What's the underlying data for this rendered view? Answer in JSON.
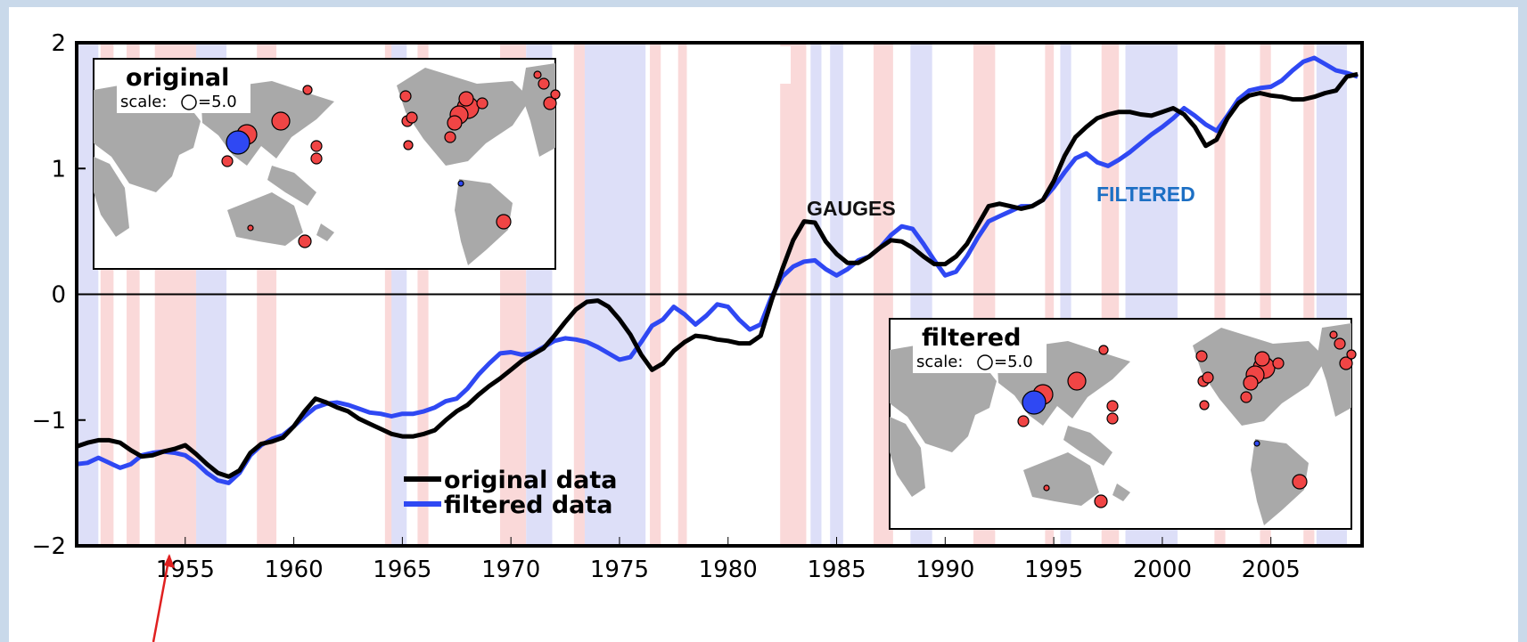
{
  "chart_data": {
    "type": "line",
    "x_ticks": [
      "1955",
      "1960",
      "1965",
      "1970",
      "1975",
      "1980",
      "1985",
      "1990",
      "1995",
      "2000",
      "2005"
    ],
    "y_ticks": [
      "2",
      "1",
      "0",
      "−1",
      "−2"
    ],
    "xlim": [
      1950.0,
      2009.2
    ],
    "ylim": [
      -2,
      2
    ],
    "grid": false,
    "zero_line": true,
    "legend": {
      "placement": "bottom-center",
      "entries": [
        {
          "label": "original data",
          "color": "#000000"
        },
        {
          "label": "filtered data",
          "color": "#2f48f3"
        }
      ]
    },
    "annotations": [
      {
        "text": "GAUGES",
        "color": "#111111"
      },
      {
        "text": "FILTERED",
        "color": "#1c6fc4"
      }
    ],
    "series": [
      {
        "key": "original",
        "color": "#000000",
        "points": [
          [
            1950.0,
            -1.21
          ],
          [
            1950.5,
            -1.18
          ],
          [
            1951.0,
            -1.16
          ],
          [
            1951.5,
            -1.16
          ],
          [
            1952.0,
            -1.18
          ],
          [
            1952.5,
            -1.24
          ],
          [
            1953.0,
            -1.29
          ],
          [
            1953.5,
            -1.28
          ],
          [
            1954.0,
            -1.25
          ],
          [
            1954.5,
            -1.23
          ],
          [
            1955.0,
            -1.2
          ],
          [
            1955.5,
            -1.27
          ],
          [
            1956.0,
            -1.35
          ],
          [
            1956.5,
            -1.42
          ],
          [
            1957.0,
            -1.45
          ],
          [
            1957.5,
            -1.4
          ],
          [
            1958.0,
            -1.26
          ],
          [
            1958.5,
            -1.19
          ],
          [
            1959.0,
            -1.17
          ],
          [
            1959.5,
            -1.14
          ],
          [
            1960.0,
            -1.05
          ],
          [
            1960.5,
            -0.93
          ],
          [
            1961.0,
            -0.83
          ],
          [
            1961.5,
            -0.86
          ],
          [
            1962.0,
            -0.9
          ],
          [
            1962.5,
            -0.93
          ],
          [
            1963.0,
            -0.99
          ],
          [
            1963.5,
            -1.03
          ],
          [
            1964.0,
            -1.07
          ],
          [
            1964.5,
            -1.11
          ],
          [
            1965.0,
            -1.13
          ],
          [
            1965.5,
            -1.13
          ],
          [
            1966.0,
            -1.11
          ],
          [
            1966.5,
            -1.08
          ],
          [
            1967.0,
            -1.0
          ],
          [
            1967.5,
            -0.93
          ],
          [
            1968.0,
            -0.88
          ],
          [
            1968.5,
            -0.8
          ],
          [
            1969.0,
            -0.73
          ],
          [
            1969.5,
            -0.67
          ],
          [
            1970.0,
            -0.6
          ],
          [
            1970.5,
            -0.53
          ],
          [
            1971.0,
            -0.48
          ],
          [
            1971.5,
            -0.43
          ],
          [
            1972.0,
            -0.33
          ],
          [
            1972.5,
            -0.22
          ],
          [
            1973.0,
            -0.12
          ],
          [
            1973.5,
            -0.06
          ],
          [
            1974.0,
            -0.05
          ],
          [
            1974.5,
            -0.1
          ],
          [
            1975.0,
            -0.2
          ],
          [
            1975.5,
            -0.32
          ],
          [
            1976.0,
            -0.48
          ],
          [
            1976.5,
            -0.6
          ],
          [
            1977.0,
            -0.55
          ],
          [
            1977.5,
            -0.45
          ],
          [
            1978.0,
            -0.38
          ],
          [
            1978.5,
            -0.33
          ],
          [
            1979.0,
            -0.34
          ],
          [
            1979.5,
            -0.36
          ],
          [
            1980.0,
            -0.37
          ],
          [
            1980.5,
            -0.39
          ],
          [
            1981.0,
            -0.39
          ],
          [
            1981.5,
            -0.33
          ],
          [
            1982.0,
            -0.05
          ],
          [
            1982.5,
            0.2
          ],
          [
            1983.0,
            0.43
          ],
          [
            1983.5,
            0.58
          ],
          [
            1984.0,
            0.57
          ],
          [
            1984.5,
            0.42
          ],
          [
            1985.0,
            0.32
          ],
          [
            1985.5,
            0.25
          ],
          [
            1986.0,
            0.25
          ],
          [
            1986.5,
            0.3
          ],
          [
            1987.0,
            0.37
          ],
          [
            1987.5,
            0.43
          ],
          [
            1988.0,
            0.42
          ],
          [
            1988.5,
            0.37
          ],
          [
            1989.0,
            0.3
          ],
          [
            1989.5,
            0.24
          ],
          [
            1990.0,
            0.24
          ],
          [
            1990.5,
            0.3
          ],
          [
            1991.0,
            0.4
          ],
          [
            1991.5,
            0.55
          ],
          [
            1992.0,
            0.7
          ],
          [
            1992.5,
            0.72
          ],
          [
            1993.0,
            0.7
          ],
          [
            1993.5,
            0.68
          ],
          [
            1994.0,
            0.7
          ],
          [
            1994.5,
            0.75
          ],
          [
            1995.0,
            0.9
          ],
          [
            1995.5,
            1.1
          ],
          [
            1996.0,
            1.25
          ],
          [
            1996.5,
            1.33
          ],
          [
            1997.0,
            1.4
          ],
          [
            1997.5,
            1.43
          ],
          [
            1998.0,
            1.45
          ],
          [
            1998.5,
            1.45
          ],
          [
            1999.0,
            1.43
          ],
          [
            1999.5,
            1.42
          ],
          [
            2000.0,
            1.45
          ],
          [
            2000.5,
            1.48
          ],
          [
            2001.0,
            1.43
          ],
          [
            2001.5,
            1.33
          ],
          [
            2002.0,
            1.18
          ],
          [
            2002.5,
            1.23
          ],
          [
            2003.0,
            1.4
          ],
          [
            2003.5,
            1.52
          ],
          [
            2004.0,
            1.58
          ],
          [
            2004.5,
            1.6
          ],
          [
            2005.0,
            1.58
          ],
          [
            2005.5,
            1.57
          ],
          [
            2006.0,
            1.55
          ],
          [
            2006.5,
            1.55
          ],
          [
            2007.0,
            1.57
          ],
          [
            2007.5,
            1.6
          ],
          [
            2008.0,
            1.62
          ],
          [
            2008.5,
            1.73
          ],
          [
            2009.0,
            1.75
          ]
        ]
      },
      {
        "key": "filtered",
        "color": "#2f48f3",
        "points": [
          [
            1950.0,
            -1.35
          ],
          [
            1950.5,
            -1.34
          ],
          [
            1951.0,
            -1.3
          ],
          [
            1951.5,
            -1.34
          ],
          [
            1952.0,
            -1.38
          ],
          [
            1952.5,
            -1.35
          ],
          [
            1953.0,
            -1.28
          ],
          [
            1953.5,
            -1.26
          ],
          [
            1954.0,
            -1.25
          ],
          [
            1954.5,
            -1.26
          ],
          [
            1955.0,
            -1.28
          ],
          [
            1955.5,
            -1.34
          ],
          [
            1956.0,
            -1.42
          ],
          [
            1956.5,
            -1.48
          ],
          [
            1957.0,
            -1.5
          ],
          [
            1957.5,
            -1.42
          ],
          [
            1958.0,
            -1.28
          ],
          [
            1958.5,
            -1.2
          ],
          [
            1959.0,
            -1.15
          ],
          [
            1959.5,
            -1.12
          ],
          [
            1960.0,
            -1.05
          ],
          [
            1960.5,
            -0.97
          ],
          [
            1961.0,
            -0.9
          ],
          [
            1961.5,
            -0.87
          ],
          [
            1962.0,
            -0.86
          ],
          [
            1962.5,
            -0.88
          ],
          [
            1963.0,
            -0.91
          ],
          [
            1963.5,
            -0.94
          ],
          [
            1964.0,
            -0.95
          ],
          [
            1964.5,
            -0.97
          ],
          [
            1965.0,
            -0.95
          ],
          [
            1965.5,
            -0.95
          ],
          [
            1966.0,
            -0.93
          ],
          [
            1966.5,
            -0.9
          ],
          [
            1967.0,
            -0.85
          ],
          [
            1967.5,
            -0.83
          ],
          [
            1968.0,
            -0.75
          ],
          [
            1968.5,
            -0.64
          ],
          [
            1969.0,
            -0.55
          ],
          [
            1969.5,
            -0.47
          ],
          [
            1970.0,
            -0.46
          ],
          [
            1970.5,
            -0.48
          ],
          [
            1971.0,
            -0.47
          ],
          [
            1971.5,
            -0.42
          ],
          [
            1972.0,
            -0.37
          ],
          [
            1972.5,
            -0.35
          ],
          [
            1973.0,
            -0.36
          ],
          [
            1973.5,
            -0.38
          ],
          [
            1974.0,
            -0.42
          ],
          [
            1974.5,
            -0.47
          ],
          [
            1975.0,
            -0.52
          ],
          [
            1975.5,
            -0.5
          ],
          [
            1976.0,
            -0.38
          ],
          [
            1976.5,
            -0.25
          ],
          [
            1977.0,
            -0.2
          ],
          [
            1977.5,
            -0.1
          ],
          [
            1978.0,
            -0.16
          ],
          [
            1978.5,
            -0.24
          ],
          [
            1979.0,
            -0.17
          ],
          [
            1979.5,
            -0.08
          ],
          [
            1980.0,
            -0.1
          ],
          [
            1980.5,
            -0.2
          ],
          [
            1981.0,
            -0.28
          ],
          [
            1981.5,
            -0.24
          ],
          [
            1982.0,
            -0.02
          ],
          [
            1982.5,
            0.14
          ],
          [
            1983.0,
            0.22
          ],
          [
            1983.5,
            0.26
          ],
          [
            1984.0,
            0.27
          ],
          [
            1984.5,
            0.2
          ],
          [
            1985.0,
            0.15
          ],
          [
            1985.5,
            0.2
          ],
          [
            1986.0,
            0.27
          ],
          [
            1986.5,
            0.3
          ],
          [
            1987.0,
            0.37
          ],
          [
            1987.5,
            0.47
          ],
          [
            1988.0,
            0.54
          ],
          [
            1988.5,
            0.52
          ],
          [
            1989.0,
            0.4
          ],
          [
            1989.5,
            0.27
          ],
          [
            1990.0,
            0.15
          ],
          [
            1990.5,
            0.18
          ],
          [
            1991.0,
            0.3
          ],
          [
            1991.5,
            0.45
          ],
          [
            1992.0,
            0.58
          ],
          [
            1992.5,
            0.62
          ],
          [
            1993.0,
            0.66
          ],
          [
            1993.5,
            0.7
          ],
          [
            1994.0,
            0.7
          ],
          [
            1994.5,
            0.75
          ],
          [
            1995.0,
            0.85
          ],
          [
            1995.5,
            0.97
          ],
          [
            1996.0,
            1.08
          ],
          [
            1996.5,
            1.12
          ],
          [
            1997.0,
            1.05
          ],
          [
            1997.5,
            1.02
          ],
          [
            1998.0,
            1.07
          ],
          [
            1998.5,
            1.13
          ],
          [
            1999.0,
            1.2
          ],
          [
            1999.5,
            1.27
          ],
          [
            2000.0,
            1.33
          ],
          [
            2000.5,
            1.4
          ],
          [
            2001.0,
            1.48
          ],
          [
            2001.5,
            1.42
          ],
          [
            2002.0,
            1.35
          ],
          [
            2002.5,
            1.3
          ],
          [
            2003.0,
            1.42
          ],
          [
            2003.5,
            1.55
          ],
          [
            2004.0,
            1.62
          ],
          [
            2004.5,
            1.64
          ],
          [
            2005.0,
            1.65
          ],
          [
            2005.5,
            1.7
          ],
          [
            2006.0,
            1.78
          ],
          [
            2006.5,
            1.85
          ],
          [
            2007.0,
            1.88
          ],
          [
            2007.5,
            1.83
          ],
          [
            2008.0,
            1.78
          ],
          [
            2008.5,
            1.76
          ],
          [
            2009.0,
            1.73
          ]
        ]
      }
    ],
    "shading": {
      "warm_color": "#fad9d9",
      "cool_color": "#dddff8",
      "warm": [
        [
          1951.1,
          1951.7
        ],
        [
          1952.3,
          1952.9
        ],
        [
          1953.6,
          1955.5
        ],
        [
          1958.3,
          1959.2
        ],
        [
          1964.2,
          1964.8
        ],
        [
          1965.7,
          1966.2
        ],
        [
          1969.5,
          1970.7
        ],
        [
          1972.9,
          1973.4
        ],
        [
          1976.4,
          1976.9
        ],
        [
          1977.7,
          1978.1
        ],
        [
          1982.4,
          1983.6
        ],
        [
          1986.7,
          1987.6
        ],
        [
          1991.3,
          1992.3
        ],
        [
          1994.6,
          1995.0
        ],
        [
          1997.2,
          1998.0
        ],
        [
          2002.4,
          2002.9
        ],
        [
          2004.5,
          2005.0
        ],
        [
          2006.5,
          2007.0
        ]
      ],
      "cool": [
        [
          1950.0,
          1951.0
        ],
        [
          1955.5,
          1956.9
        ],
        [
          1964.5,
          1965.2
        ],
        [
          1970.7,
          1971.9
        ],
        [
          1973.4,
          1976.2
        ],
        [
          1983.8,
          1984.3
        ],
        [
          1984.7,
          1985.3
        ],
        [
          1988.4,
          1989.4
        ],
        [
          1995.3,
          1995.8
        ],
        [
          1998.3,
          2000.7
        ],
        [
          2007.1,
          2008.5
        ]
      ]
    }
  },
  "insets": [
    {
      "key": "original",
      "title": "original",
      "scale_label": "scale:",
      "scale_value": "=5.0",
      "land_color": "#a9a9a9",
      "marker_pos_color": "#f04545",
      "marker_neg_color": "#2f48f3"
    },
    {
      "key": "filtered",
      "title": "filtered",
      "scale_label": "scale:",
      "scale_value": "=5.0",
      "land_color": "#a9a9a9",
      "marker_pos_color": "#f04545",
      "marker_neg_color": "#2f48f3"
    }
  ],
  "pointer_arrow_color": "#e02020"
}
